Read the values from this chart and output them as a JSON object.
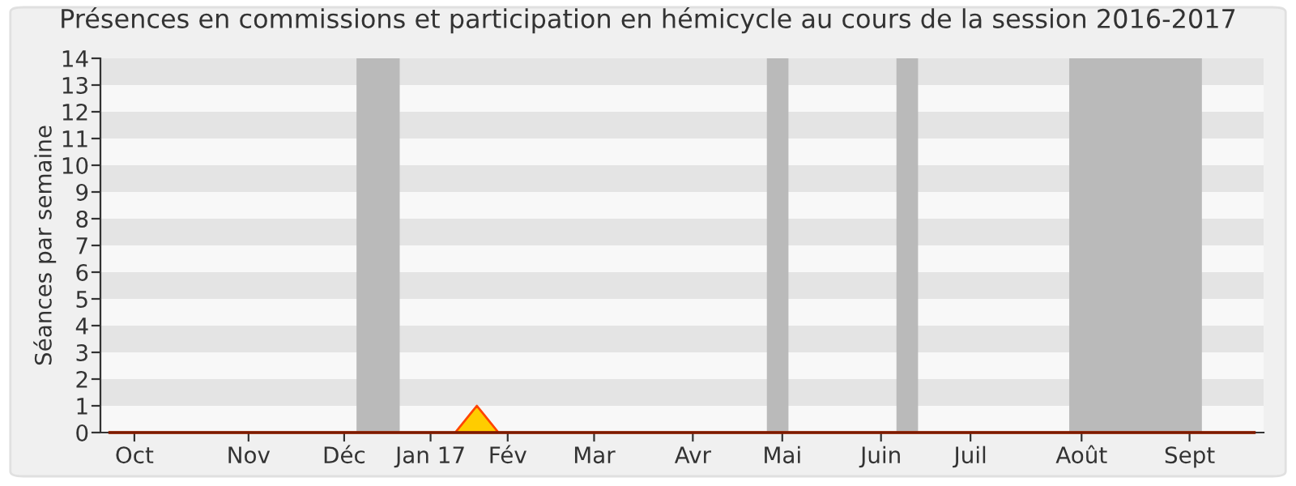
{
  "chart_data": {
    "type": "area",
    "title": "Présences en commissions et participation en hémicycle au cours de la session 2016-2017",
    "ylabel": "Séances par semaine",
    "x": [
      "2016-09-26",
      "2016-10-03",
      "2016-10-10",
      "2016-10-17",
      "2016-10-24",
      "2016-10-31",
      "2016-11-07",
      "2016-11-14",
      "2016-11-21",
      "2016-11-28",
      "2016-12-05",
      "2016-12-12",
      "2016-12-19",
      "2016-12-26",
      "2017-01-02",
      "2017-01-09",
      "2017-01-16",
      "2017-01-23",
      "2017-01-30",
      "2017-02-06",
      "2017-02-13",
      "2017-02-20",
      "2017-02-27",
      "2017-03-06",
      "2017-03-13",
      "2017-03-20",
      "2017-03-27",
      "2017-04-03",
      "2017-04-10",
      "2017-04-17",
      "2017-04-24",
      "2017-05-01",
      "2017-05-08",
      "2017-05-15",
      "2017-05-22",
      "2017-05-29",
      "2017-06-05",
      "2017-06-12",
      "2017-06-19",
      "2017-06-26",
      "2017-07-03",
      "2017-07-10",
      "2017-07-17",
      "2017-07-24",
      "2017-07-31",
      "2017-08-07",
      "2017-08-14",
      "2017-08-21",
      "2017-08-28",
      "2017-09-04",
      "2017-09-11",
      "2017-09-18",
      "2017-09-25",
      "2017-10-02"
    ],
    "series": [
      {
        "color": "#ffcc00",
        "values": [
          0,
          0,
          0,
          0,
          0,
          0,
          0,
          0,
          0,
          0,
          0,
          0,
          0,
          0,
          0,
          0,
          0,
          1,
          0,
          0,
          0,
          0,
          0,
          0,
          0,
          0,
          0,
          0,
          0,
          0,
          0,
          0,
          0,
          0,
          0,
          0,
          0,
          0,
          0,
          0,
          0,
          0,
          0,
          0,
          0,
          0,
          0,
          0,
          0,
          0,
          0,
          0,
          0,
          0
        ]
      },
      {
        "type": "line",
        "color": "#7a1a00",
        "values": [
          0,
          0,
          0,
          0,
          0,
          0,
          0,
          0,
          0,
          0,
          0,
          0,
          0,
          0,
          0,
          0,
          0,
          0,
          0,
          0,
          0,
          0,
          0,
          0,
          0,
          0,
          0,
          0,
          0,
          0,
          0,
          0,
          0,
          0,
          0,
          0,
          0,
          0,
          0,
          0,
          0,
          0,
          0,
          0,
          0,
          0,
          0,
          0,
          0,
          0,
          0,
          0,
          0,
          0
        ]
      }
    ],
    "xlim": [
      "2016-09-23",
      "2017-10-05"
    ],
    "xticks": [
      {
        "value": "2016-10-04",
        "label": "Oct"
      },
      {
        "value": "2016-11-10",
        "label": "Nov"
      },
      {
        "value": "2016-12-11",
        "label": "Déc"
      },
      {
        "value": "2017-01-08",
        "label": "Jan 17"
      },
      {
        "value": "2017-02-02",
        "label": "Fév"
      },
      {
        "value": "2017-03-02",
        "label": "Mar"
      },
      {
        "value": "2017-04-03",
        "label": "Avr"
      },
      {
        "value": "2017-05-02",
        "label": "Mai"
      },
      {
        "value": "2017-06-03",
        "label": "Juin"
      },
      {
        "value": "2017-07-02",
        "label": "Juil"
      },
      {
        "value": "2017-08-07",
        "label": "Août"
      },
      {
        "value": "2017-09-11",
        "label": "Sept"
      }
    ],
    "ylim": [
      0,
      14
    ],
    "yticks": [
      0,
      1,
      2,
      3,
      4,
      5,
      6,
      7,
      8,
      9,
      10,
      11,
      12,
      13,
      14
    ],
    "bands": [
      {
        "axis": "x",
        "from": "2016-12-15",
        "to": "2016-12-29",
        "color": "#bababa"
      },
      {
        "axis": "x",
        "from": "2017-04-27",
        "to": "2017-05-04",
        "color": "#bababa"
      },
      {
        "axis": "x",
        "from": "2017-06-08",
        "to": "2017-06-15",
        "color": "#bababa"
      },
      {
        "axis": "x",
        "from": "2017-08-03",
        "to": "2017-09-15",
        "color": "#bababa"
      }
    ],
    "legend": false
  }
}
